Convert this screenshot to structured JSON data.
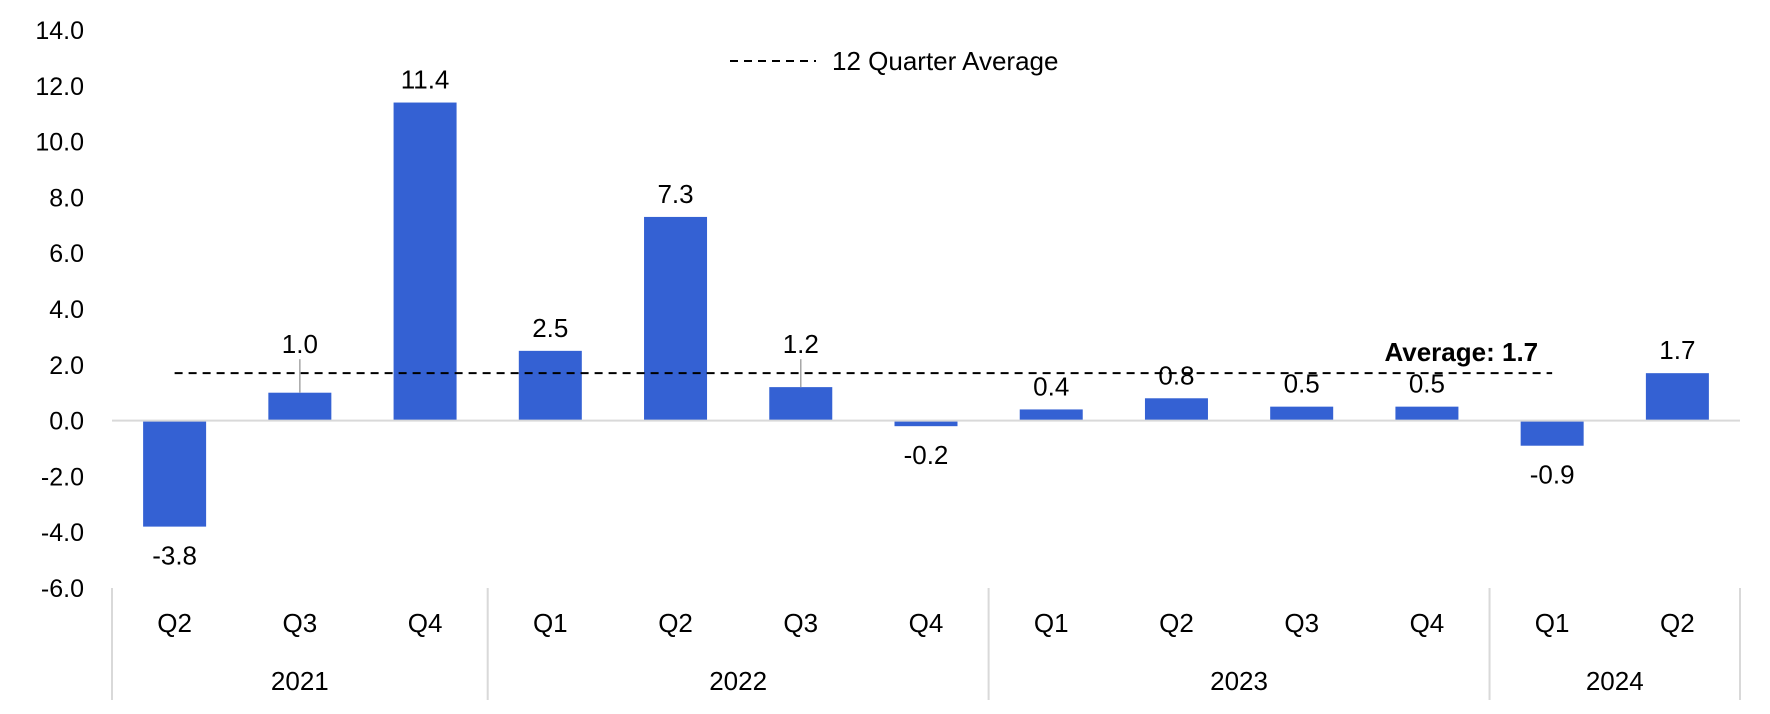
{
  "chart_data": {
    "type": "bar",
    "title": "",
    "xlabel": "",
    "ylabel": "",
    "ylim": [
      -6.0,
      14.0
    ],
    "yticks": [
      "14.0",
      "12.0",
      "10.0",
      "8.0",
      "6.0",
      "4.0",
      "2.0",
      "0.0",
      "-2.0",
      "-4.0",
      "-6.0"
    ],
    "ytick_values": [
      14,
      12,
      10,
      8,
      6,
      4,
      2,
      0,
      -2,
      -4,
      -6
    ],
    "categories": [
      "Q2",
      "Q3",
      "Q4",
      "Q1",
      "Q2",
      "Q3",
      "Q4",
      "Q1",
      "Q2",
      "Q3",
      "Q4",
      "Q1",
      "Q2"
    ],
    "years": [
      {
        "label": "2021",
        "count": 3
      },
      {
        "label": "2022",
        "count": 4
      },
      {
        "label": "2023",
        "count": 4
      },
      {
        "label": "2024",
        "count": 2
      }
    ],
    "values": [
      -3.8,
      1.0,
      11.4,
      2.5,
      7.3,
      1.2,
      -0.2,
      0.4,
      0.8,
      0.5,
      0.5,
      -0.9,
      1.7
    ],
    "data_labels": [
      "-3.8",
      "1.0",
      "11.4",
      "2.5",
      "7.3",
      "1.2",
      "-0.2",
      "0.4",
      "0.8",
      "0.5",
      "0.5",
      "-0.9",
      "1.7"
    ],
    "average": {
      "value": 1.7,
      "label": "Average: 1.7",
      "legend": "12 Quarter Average",
      "start_index": 0,
      "end_index": 11
    },
    "bar_color": "#3461D3",
    "axis_color": "#D9D9D9",
    "legend_position": "top-center",
    "grid": false
  }
}
